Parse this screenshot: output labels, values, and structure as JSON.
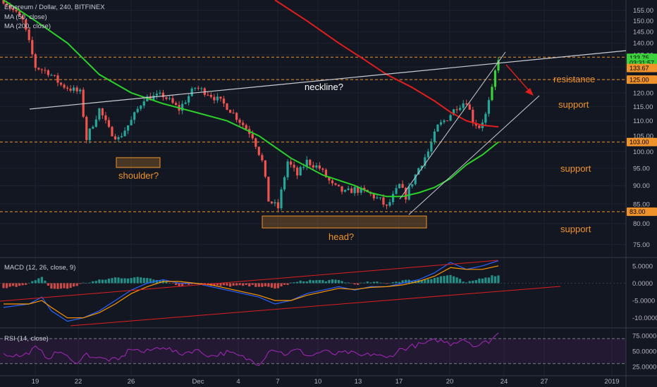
{
  "colors": {
    "background": "#131722",
    "up": "#26a69a",
    "down": "#ef5350",
    "big_up": "#3ad13a",
    "ma50": "#2bd02b",
    "ma200": "#e01e1e",
    "annotation": "#f0932b",
    "line": "#c9ccd3",
    "macd": "#2962ff",
    "signal": "#ff9800",
    "rsi": "#9c27b0"
  },
  "header": {
    "title": "Ethereum / Dollar, 240, BITFINEX",
    "ma50": "MA (50, close)",
    "ma200": "MA (200, close)",
    "macd": "MACD (12, 26, close, 9)",
    "rsi": "RSI (14, close)"
  },
  "annotations": {
    "neckline": "neckline?",
    "shoulder": "shoulder?",
    "head": "head?",
    "resistance": "resistance",
    "support1": "support",
    "support2": "support",
    "support3": "support"
  },
  "chart_data": [
    {
      "type": "candlestick",
      "title": "Ethereum / Dollar, 240, BITFINEX",
      "y_scale": "log",
      "ylim": [
        72,
        160
      ],
      "y_ticks": [
        75,
        80,
        85,
        90,
        95,
        100,
        105,
        110,
        115,
        120,
        125,
        130,
        135,
        140,
        145,
        150,
        155
      ],
      "y_tick_labels": [
        "75.00",
        "80.00",
        "85.00",
        "90.00",
        "95.00",
        "100.00",
        "105.00",
        "110.00",
        "115.00",
        "120.00",
        "125.00",
        "130.00",
        "135.00",
        "140.00",
        "145.00",
        "150.00",
        "155.00"
      ],
      "x_ticks": [
        "19",
        "22",
        "26",
        "Dec",
        "4",
        "7",
        "10",
        "13",
        "17",
        "20",
        "24",
        "27",
        "2019"
      ],
      "price_path": [
        [
          0,
          160
        ],
        [
          6,
          150
        ],
        [
          10,
          130
        ],
        [
          14,
          128
        ],
        [
          18,
          123
        ],
        [
          24,
          120
        ],
        [
          26,
          104
        ],
        [
          30,
          114
        ],
        [
          33,
          107
        ],
        [
          36,
          104
        ],
        [
          40,
          110
        ],
        [
          44,
          118
        ],
        [
          50,
          119
        ],
        [
          55,
          114
        ],
        [
          60,
          122
        ],
        [
          64,
          120
        ],
        [
          70,
          115
        ],
        [
          74,
          110
        ],
        [
          78,
          105
        ],
        [
          81,
          97
        ],
        [
          83,
          86
        ],
        [
          86,
          84
        ],
        [
          89,
          97
        ],
        [
          92,
          93
        ],
        [
          95,
          97
        ],
        [
          99,
          95
        ],
        [
          103,
          90
        ],
        [
          107,
          88
        ],
        [
          110,
          89
        ],
        [
          114,
          88
        ],
        [
          118,
          86
        ],
        [
          120,
          84
        ],
        [
          124,
          90
        ],
        [
          126,
          87
        ],
        [
          128,
          91
        ],
        [
          130,
          95
        ],
        [
          133,
          100
        ],
        [
          136,
          108
        ],
        [
          139,
          111
        ],
        [
          142,
          115
        ],
        [
          145,
          117
        ],
        [
          147,
          110
        ],
        [
          149,
          108
        ],
        [
          151,
          112
        ],
        [
          153,
          121
        ],
        [
          154,
          128
        ],
        [
          155,
          133.75
        ]
      ],
      "series": [
        {
          "name": "MA (50, close)",
          "values": [
            [
              0,
              160
            ],
            [
              10,
              150
            ],
            [
              20,
              140
            ],
            [
              30,
              127
            ],
            [
              40,
              120
            ],
            [
              50,
              116
            ],
            [
              60,
              113
            ],
            [
              70,
              110
            ],
            [
              80,
              105
            ],
            [
              90,
              98
            ],
            [
              100,
              93
            ],
            [
              110,
              90
            ],
            [
              115,
              88
            ],
            [
              120,
              87
            ],
            [
              125,
              87
            ],
            [
              130,
              88
            ],
            [
              135,
              89.5
            ],
            [
              140,
              92
            ],
            [
              145,
              96
            ],
            [
              150,
              99
            ],
            [
              155,
              103
            ]
          ]
        },
        {
          "name": "MA (200, close)",
          "values": [
            [
              85,
              160
            ],
            [
              95,
              150
            ],
            [
              105,
              140
            ],
            [
              113,
              133
            ],
            [
              120,
              127
            ],
            [
              128,
              122
            ],
            [
              135,
              117
            ],
            [
              140,
              113
            ],
            [
              145,
              110
            ],
            [
              150,
              108.5
            ],
            [
              155,
              108
            ]
          ]
        }
      ],
      "price_labels": [
        {
          "value": "133.75",
          "y": 133.75,
          "color": "#3ad13a"
        },
        {
          "value": "03:31:57",
          "y": 131.7,
          "color": "#3ad13a"
        },
        {
          "value": "133.67",
          "y": 129.6,
          "color": "#f0932b"
        },
        {
          "value": "125.00",
          "y": 125,
          "color": "#f0932b"
        },
        {
          "value": "103.00",
          "y": 103,
          "color": "#f0932b"
        },
        {
          "value": "83.00",
          "y": 83,
          "color": "#f0932b"
        }
      ],
      "horizontal_levels": [
        134,
        125,
        103,
        83
      ]
    },
    {
      "type": "line",
      "title": "MACD (12, 26, close, 9)",
      "ylim": [
        -12.5,
        7
      ],
      "y_ticks": [
        5,
        0,
        -5,
        -10
      ],
      "y_tick_labels": [
        "5.0000",
        "0.0000",
        "-5.0000",
        "-10.0000"
      ],
      "series": [
        {
          "name": "MACD",
          "values": [
            [
              0,
              -7
            ],
            [
              8,
              -6
            ],
            [
              12,
              -4
            ],
            [
              15,
              -8
            ],
            [
              20,
              -11
            ],
            [
              25,
              -10
            ],
            [
              30,
              -8
            ],
            [
              35,
              -5
            ],
            [
              40,
              -2
            ],
            [
              45,
              0
            ],
            [
              50,
              1
            ],
            [
              55,
              0
            ],
            [
              60,
              0
            ],
            [
              65,
              -1
            ],
            [
              70,
              -2
            ],
            [
              75,
              -3
            ],
            [
              80,
              -4
            ],
            [
              85,
              -6
            ],
            [
              90,
              -5
            ],
            [
              95,
              -3
            ],
            [
              100,
              -2
            ],
            [
              105,
              -1
            ],
            [
              110,
              -2
            ],
            [
              115,
              -1
            ],
            [
              120,
              -1
            ],
            [
              125,
              0
            ],
            [
              130,
              1
            ],
            [
              135,
              3
            ],
            [
              140,
              6
            ],
            [
              145,
              4
            ],
            [
              150,
              5
            ],
            [
              155,
              6.5
            ]
          ]
        },
        {
          "name": "Signal",
          "values": [
            [
              0,
              -6
            ],
            [
              8,
              -6
            ],
            [
              12,
              -5
            ],
            [
              15,
              -7
            ],
            [
              20,
              -10
            ],
            [
              25,
              -10
            ],
            [
              30,
              -8.5
            ],
            [
              35,
              -6
            ],
            [
              40,
              -3
            ],
            [
              45,
              -1
            ],
            [
              50,
              0.5
            ],
            [
              55,
              0.5
            ],
            [
              60,
              0
            ],
            [
              65,
              -0.5
            ],
            [
              70,
              -1.5
            ],
            [
              75,
              -2.5
            ],
            [
              80,
              -3.5
            ],
            [
              85,
              -5
            ],
            [
              90,
              -5
            ],
            [
              95,
              -3.5
            ],
            [
              100,
              -2.5
            ],
            [
              105,
              -1.5
            ],
            [
              110,
              -1.8
            ],
            [
              115,
              -1.2
            ],
            [
              120,
              -1
            ],
            [
              125,
              -0.5
            ],
            [
              130,
              0.5
            ],
            [
              135,
              2
            ],
            [
              140,
              4.5
            ],
            [
              145,
              4
            ],
            [
              150,
              4
            ],
            [
              155,
              5
            ]
          ]
        }
      ]
    },
    {
      "type": "line",
      "title": "RSI (14, close)",
      "ylim": [
        15,
        85
      ],
      "y_ticks": [
        75,
        50,
        25
      ],
      "y_tick_labels": [
        "75.0000",
        "50.0000",
        "25.0000"
      ],
      "series": [
        {
          "name": "RSI",
          "values": [
            [
              0,
              45
            ],
            [
              6,
              42
            ],
            [
              10,
              55
            ],
            [
              14,
              40
            ],
            [
              18,
              50
            ],
            [
              22,
              30
            ],
            [
              26,
              45
            ],
            [
              30,
              38
            ],
            [
              36,
              35
            ],
            [
              40,
              55
            ],
            [
              44,
              48
            ],
            [
              50,
              58
            ],
            [
              55,
              45
            ],
            [
              60,
              52
            ],
            [
              65,
              42
            ],
            [
              70,
              48
            ],
            [
              75,
              40
            ],
            [
              80,
              30
            ],
            [
              84,
              55
            ],
            [
              88,
              45
            ],
            [
              92,
              52
            ],
            [
              96,
              42
            ],
            [
              100,
              50
            ],
            [
              104,
              45
            ],
            [
              108,
              48
            ],
            [
              112,
              42
            ],
            [
              116,
              46
            ],
            [
              120,
              38
            ],
            [
              124,
              52
            ],
            [
              128,
              58
            ],
            [
              132,
              62
            ],
            [
              136,
              68
            ],
            [
              140,
              62
            ],
            [
              144,
              70
            ],
            [
              148,
              58
            ],
            [
              152,
              66
            ],
            [
              155,
              78
            ]
          ]
        }
      ]
    }
  ]
}
